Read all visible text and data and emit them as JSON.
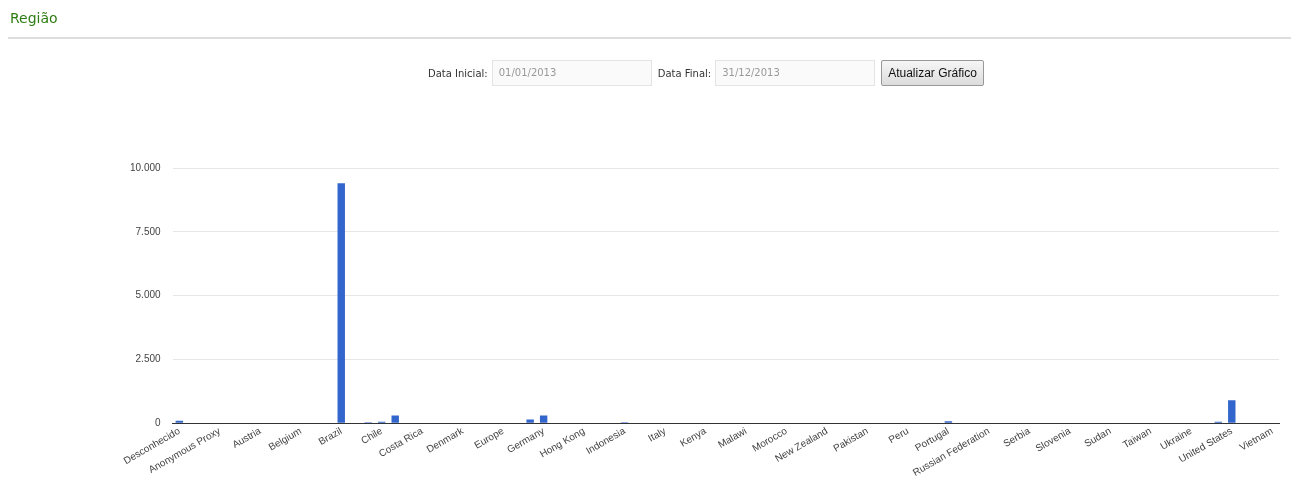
{
  "chart_data": {
    "type": "bar",
    "title": "Região",
    "annotations": [
      "Data Inicial:",
      "01/01/2013",
      "Data Final:",
      "31/12/2013",
      "Atualizar Gráfico"
    ],
    "categories": [
      "Desconhecido",
      null,
      null,
      "Anonymous Proxy",
      null,
      null,
      "Austria",
      null,
      null,
      "Belgium",
      null,
      null,
      "Brazil",
      null,
      null,
      "Chile",
      null,
      null,
      "Costa Rica",
      null,
      null,
      "Denmark",
      null,
      null,
      "Europe",
      null,
      null,
      "Germany",
      null,
      null,
      "Hong Kong",
      null,
      null,
      "Indonesia",
      null,
      null,
      "Italy",
      null,
      null,
      "Kenya",
      null,
      null,
      "Malawi",
      null,
      null,
      "Morocco",
      null,
      null,
      "New Zealand",
      null,
      null,
      "Pakistan",
      null,
      null,
      "Peru",
      null,
      null,
      "Portugal",
      null,
      null,
      "Russian Federation",
      null,
      null,
      "Serbia",
      null,
      null,
      "Slovenia",
      null,
      null,
      "Sudan",
      null,
      null,
      "Taiwan",
      null,
      null,
      "Ukraine",
      null,
      null,
      "United States",
      null,
      null,
      "Vietnam"
    ],
    "values": [
      100,
      0,
      0,
      0,
      0,
      0,
      0,
      0,
      0,
      0,
      0,
      0,
      9400,
      0,
      40,
      60,
      300,
      null,
      0,
      0,
      0,
      0,
      0,
      0,
      0,
      0,
      150,
      300,
      0,
      0,
      0,
      0,
      null,
      40,
      null,
      0,
      0,
      0,
      0,
      0,
      0,
      0,
      0,
      0,
      null,
      0,
      0,
      0,
      0,
      0,
      0,
      0,
      0,
      0,
      0,
      0,
      0,
      80,
      0,
      0,
      0,
      0,
      0,
      0,
      0,
      0,
      0,
      0,
      null,
      0,
      0,
      null,
      0,
      0,
      0,
      0,
      0,
      60,
      900,
      0,
      0,
      0
    ],
    "color": "#3366cc",
    "ylim": [
      0,
      10000
    ],
    "yticks": [
      {
        "value": 0,
        "label": "0"
      },
      {
        "value": 2500,
        "label": "2.500"
      },
      {
        "value": 5000,
        "label": "5.000"
      },
      {
        "value": 7500,
        "label": "7.500"
      },
      {
        "value": 10000,
        "label": "10.000"
      }
    ],
    "grid": "y",
    "legend": false
  }
}
